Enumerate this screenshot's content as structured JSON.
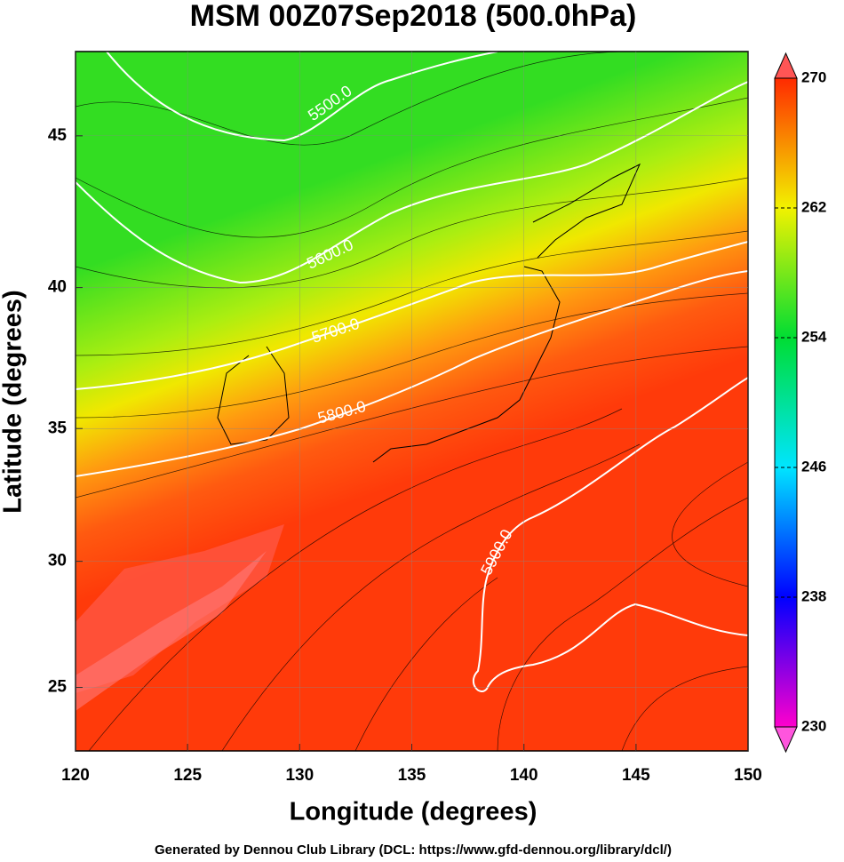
{
  "chart_data": {
    "type": "map",
    "title": "MSM 00Z07Sep2018 (500.0hPa)",
    "xlabel": "Longitude (degrees)",
    "ylabel": "Latitude  (degrees)",
    "footer": "Generated by Dennou Club Library (DCL: https://www.gfd-dennou.org/library/dcl/)",
    "xlim": [
      120,
      150
    ],
    "xticks": [
      120,
      125,
      130,
      135,
      140,
      145,
      150
    ],
    "ylim": [
      22.4,
      47.6
    ],
    "yticks": [
      25,
      30,
      35,
      40,
      45
    ],
    "colorbar_lim": [
      230,
      270
    ],
    "colorbar_ticks": [
      230,
      238,
      246,
      254,
      262,
      270
    ],
    "colorbar_colors": [
      "#ff00cc",
      "#0000ff",
      "#00e5ff",
      "#00dd33",
      "#f2f200",
      "#ff2a00"
    ],
    "contours": [
      {
        "value": 5500,
        "label": "5500.0"
      },
      {
        "value": 5600,
        "label": "5600.0"
      },
      {
        "value": 5700,
        "label": "5700.0"
      },
      {
        "value": 5800,
        "label": "5800.0"
      },
      {
        "value": 5900,
        "label": "5900.0"
      }
    ]
  }
}
